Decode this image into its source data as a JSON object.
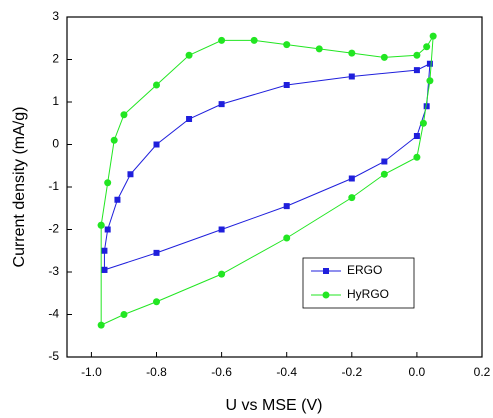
{
  "chart_data": {
    "type": "line",
    "x_label": "U vs MSE (V)",
    "y_label": "Current density (mA/g)",
    "xlim": [
      -1.075,
      0.2
    ],
    "ylim": [
      -5,
      3
    ],
    "xticks": [
      {
        "value": -1.0,
        "label": "-1.0"
      },
      -0.8,
      -0.6,
      -0.4,
      -0.2,
      {
        "value": 0.0,
        "label": "0.0"
      },
      0.2
    ],
    "yticks": [
      -5,
      -4,
      -3,
      -2,
      -1,
      0,
      1,
      2,
      3
    ],
    "legend": "lower-right",
    "series": [
      {
        "name": "ERGO",
        "color": "#1f1fdc",
        "marker": "square",
        "x": [
          -0.96,
          -0.8,
          -0.6,
          -0.4,
          -0.2,
          -0.1,
          0.0,
          0.03,
          0.04,
          0.0,
          -0.2,
          -0.4,
          -0.6,
          -0.7,
          -0.8,
          -0.88,
          -0.92,
          -0.95,
          -0.96,
          -0.96
        ],
        "values": [
          -2.95,
          -2.55,
          -2.0,
          -1.45,
          -0.8,
          -0.4,
          0.2,
          0.9,
          1.9,
          1.75,
          1.6,
          1.4,
          0.95,
          0.6,
          0.0,
          -0.7,
          -1.3,
          -2.0,
          -2.5,
          -2.95
        ]
      },
      {
        "name": "HyRGO",
        "color": "#22e622",
        "marker": "circle",
        "x": [
          -0.97,
          -0.95,
          -0.93,
          -0.9,
          -0.8,
          -0.7,
          -0.6,
          -0.5,
          -0.4,
          -0.3,
          -0.2,
          -0.1,
          0.0,
          0.03,
          0.05,
          0.04,
          0.02,
          0.0,
          -0.1,
          -0.2,
          -0.4,
          -0.6,
          -0.8,
          -0.9,
          -0.97,
          -0.97
        ],
        "values": [
          -1.9,
          -0.9,
          0.1,
          0.7,
          1.4,
          2.1,
          2.45,
          2.45,
          2.35,
          2.25,
          2.15,
          2.05,
          2.1,
          2.3,
          2.55,
          1.5,
          0.5,
          -0.3,
          -0.7,
          -1.25,
          -2.2,
          -3.05,
          -3.7,
          -4.0,
          -4.25,
          -1.9
        ]
      }
    ]
  }
}
